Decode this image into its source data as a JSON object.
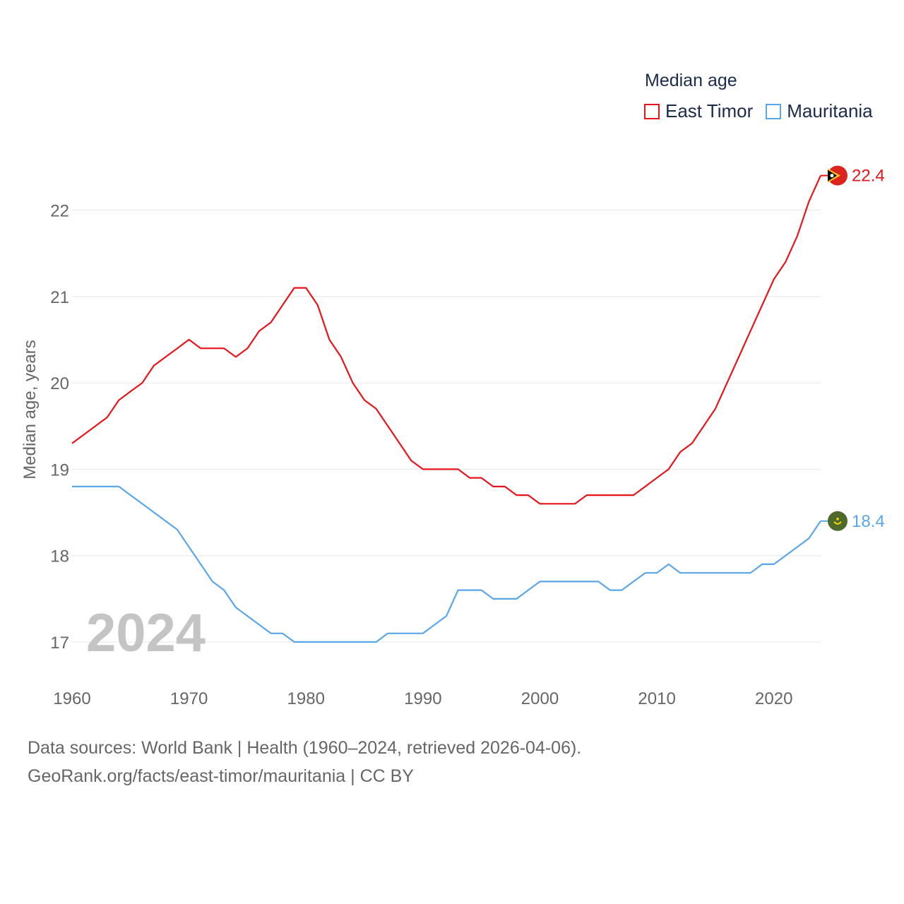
{
  "legend": {
    "title": "Median age",
    "items": [
      {
        "label": "East Timor",
        "color": "#e8141b"
      },
      {
        "label": "Mauritania",
        "color": "#5aa6e8"
      }
    ]
  },
  "footer": {
    "line1": "Data sources: World Bank | Health (1960–2024, retrieved 2026-04-06).",
    "line2": "GeoRank.org/facts/east-timor/mauritania | CC BY"
  },
  "chart_data": {
    "type": "line",
    "title": "Median age",
    "year_label": "2024",
    "ylabel": "Median age, years",
    "xlabel": "",
    "xlim": [
      1960,
      2024
    ],
    "ylim": [
      16.6,
      22.6
    ],
    "x_ticks": [
      1960,
      1970,
      1980,
      1990,
      2000,
      2010,
      2020
    ],
    "y_ticks": [
      17,
      18,
      19,
      20,
      21,
      22
    ],
    "grid": true,
    "x": [
      1960,
      1961,
      1962,
      1963,
      1964,
      1965,
      1966,
      1967,
      1968,
      1969,
      1970,
      1971,
      1972,
      1973,
      1974,
      1975,
      1976,
      1977,
      1978,
      1979,
      1980,
      1981,
      1982,
      1983,
      1984,
      1985,
      1986,
      1987,
      1988,
      1989,
      1990,
      1991,
      1992,
      1993,
      1994,
      1995,
      1996,
      1997,
      1998,
      1999,
      2000,
      2001,
      2002,
      2003,
      2004,
      2005,
      2006,
      2007,
      2008,
      2009,
      2010,
      2011,
      2012,
      2013,
      2014,
      2015,
      2016,
      2017,
      2018,
      2019,
      2020,
      2021,
      2022,
      2023,
      2024
    ],
    "series": [
      {
        "name": "East Timor",
        "color": "#e8141b",
        "end_label": "22.4",
        "values": [
          19.3,
          19.4,
          19.5,
          19.6,
          19.8,
          19.9,
          20.0,
          20.2,
          20.3,
          20.4,
          20.5,
          20.4,
          20.4,
          20.4,
          20.3,
          20.4,
          20.6,
          20.7,
          20.9,
          21.1,
          21.1,
          20.9,
          20.5,
          20.3,
          20.0,
          19.8,
          19.7,
          19.5,
          19.3,
          19.1,
          19.0,
          19.0,
          19.0,
          19.0,
          18.9,
          18.9,
          18.8,
          18.8,
          18.7,
          18.7,
          18.6,
          18.6,
          18.6,
          18.6,
          18.7,
          18.7,
          18.7,
          18.7,
          18.7,
          18.8,
          18.9,
          19.0,
          19.2,
          19.3,
          19.5,
          19.7,
          20.0,
          20.3,
          20.6,
          20.9,
          21.2,
          21.4,
          21.7,
          22.1,
          22.4
        ]
      },
      {
        "name": "Mauritania",
        "color": "#5aa6e8",
        "end_label": "18.4",
        "values": [
          18.8,
          18.8,
          18.8,
          18.8,
          18.8,
          18.7,
          18.6,
          18.5,
          18.4,
          18.3,
          18.1,
          17.9,
          17.7,
          17.6,
          17.4,
          17.3,
          17.2,
          17.1,
          17.1,
          17.0,
          17.0,
          17.0,
          17.0,
          17.0,
          17.0,
          17.0,
          17.0,
          17.1,
          17.1,
          17.1,
          17.1,
          17.2,
          17.3,
          17.6,
          17.6,
          17.6,
          17.5,
          17.5,
          17.5,
          17.6,
          17.7,
          17.7,
          17.7,
          17.7,
          17.7,
          17.7,
          17.6,
          17.6,
          17.7,
          17.8,
          17.8,
          17.9,
          17.8,
          17.8,
          17.8,
          17.8,
          17.8,
          17.8,
          17.8,
          17.9,
          17.9,
          18.0,
          18.1,
          18.2,
          18.4
        ]
      }
    ]
  }
}
